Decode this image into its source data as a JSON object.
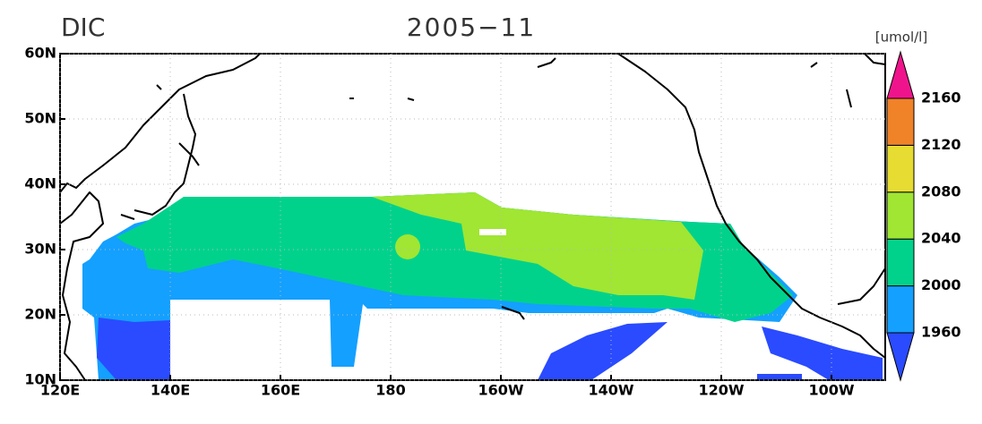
{
  "title": "DIC",
  "date": "2005−11",
  "units": "[umol/l]",
  "lon_ticks": [
    {
      "value": 120,
      "label": "120E"
    },
    {
      "value": 140,
      "label": "140E"
    },
    {
      "value": 160,
      "label": "160E"
    },
    {
      "value": 180,
      "label": "180"
    },
    {
      "value": 200,
      "label": "160W"
    },
    {
      "value": 220,
      "label": "140W"
    },
    {
      "value": 240,
      "label": "120W"
    },
    {
      "value": 260,
      "label": "100W"
    }
  ],
  "lat_ticks": [
    {
      "value": 10,
      "label": "10N"
    },
    {
      "value": 20,
      "label": "20N"
    },
    {
      "value": 30,
      "label": "30N"
    },
    {
      "value": 40,
      "label": "40N"
    },
    {
      "value": 50,
      "label": "50N"
    },
    {
      "value": 60,
      "label": "60N"
    }
  ],
  "colorbar": {
    "levels": [
      1960,
      2000,
      2040,
      2080,
      2120,
      2160
    ],
    "colors": [
      "#2a4bff",
      "#14a0ff",
      "#00d28c",
      "#a0e632",
      "#e6dc32",
      "#f08228",
      "#f0148c"
    ]
  }
}
